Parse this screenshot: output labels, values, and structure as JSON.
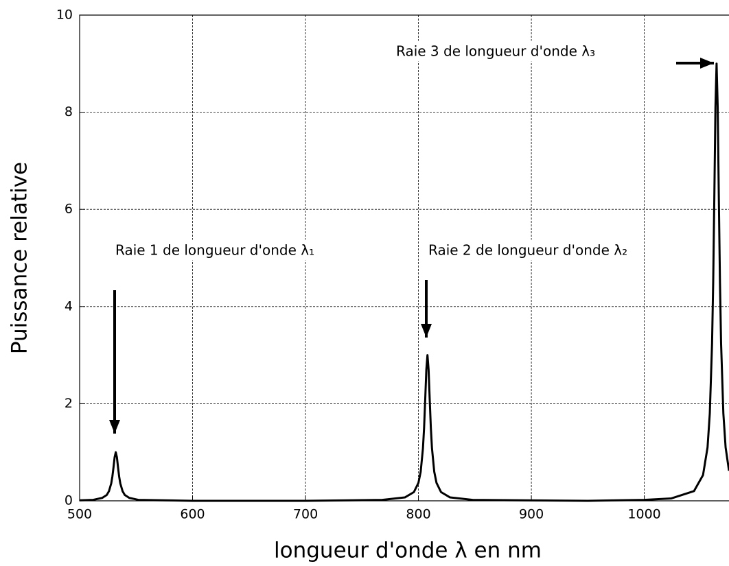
{
  "chart_data": {
    "type": "line",
    "xlabel": "longueur d'onde λ en nm",
    "ylabel": "Puissance relative",
    "x": [
      500,
      512,
      520,
      524,
      526,
      528,
      529,
      530,
      531,
      532,
      533,
      534,
      535,
      536,
      538,
      540,
      544,
      552,
      600,
      700,
      768,
      788,
      796,
      800,
      802,
      804,
      805,
      806,
      807,
      808,
      809,
      810,
      811,
      812,
      814,
      816,
      820,
      828,
      848,
      950,
      1000,
      1024,
      1044,
      1052,
      1056,
      1058,
      1060,
      1061,
      1062,
      1063,
      1064,
      1065,
      1066,
      1067,
      1068,
      1070,
      1072,
      1075
    ],
    "series": [
      {
        "color": "#000000",
        "values": [
          0.01,
          0.02,
          0.06,
          0.12,
          0.2,
          0.36,
          0.5,
          0.69,
          0.9,
          1,
          0.9,
          0.69,
          0.5,
          0.36,
          0.2,
          0.12,
          0.06,
          0.02,
          0,
          0,
          0.02,
          0.07,
          0.18,
          0.37,
          0.6,
          1.08,
          1.5,
          2.08,
          2.7,
          3,
          2.7,
          2.08,
          1.5,
          1.08,
          0.6,
          0.37,
          0.18,
          0.07,
          0.02,
          0,
          0.02,
          0.05,
          0.2,
          0.53,
          1.1,
          1.8,
          3.24,
          4.5,
          6.23,
          8.1,
          9,
          8.1,
          6.23,
          4.5,
          3.24,
          1.8,
          1.1,
          0.62
        ]
      }
    ],
    "annotations": [
      "Raie 1 de longueur d'onde λ₁",
      "Raie 2 de longueur d'onde λ₂",
      "Raie 3 de longueur d'onde λ₃"
    ],
    "xlim": [
      500,
      1075
    ],
    "ylim": [
      0,
      10
    ],
    "xticks": [
      500,
      600,
      700,
      800,
      900,
      1000
    ],
    "yticks": [
      0,
      2,
      4,
      6,
      8,
      10
    ],
    "grid": true
  }
}
